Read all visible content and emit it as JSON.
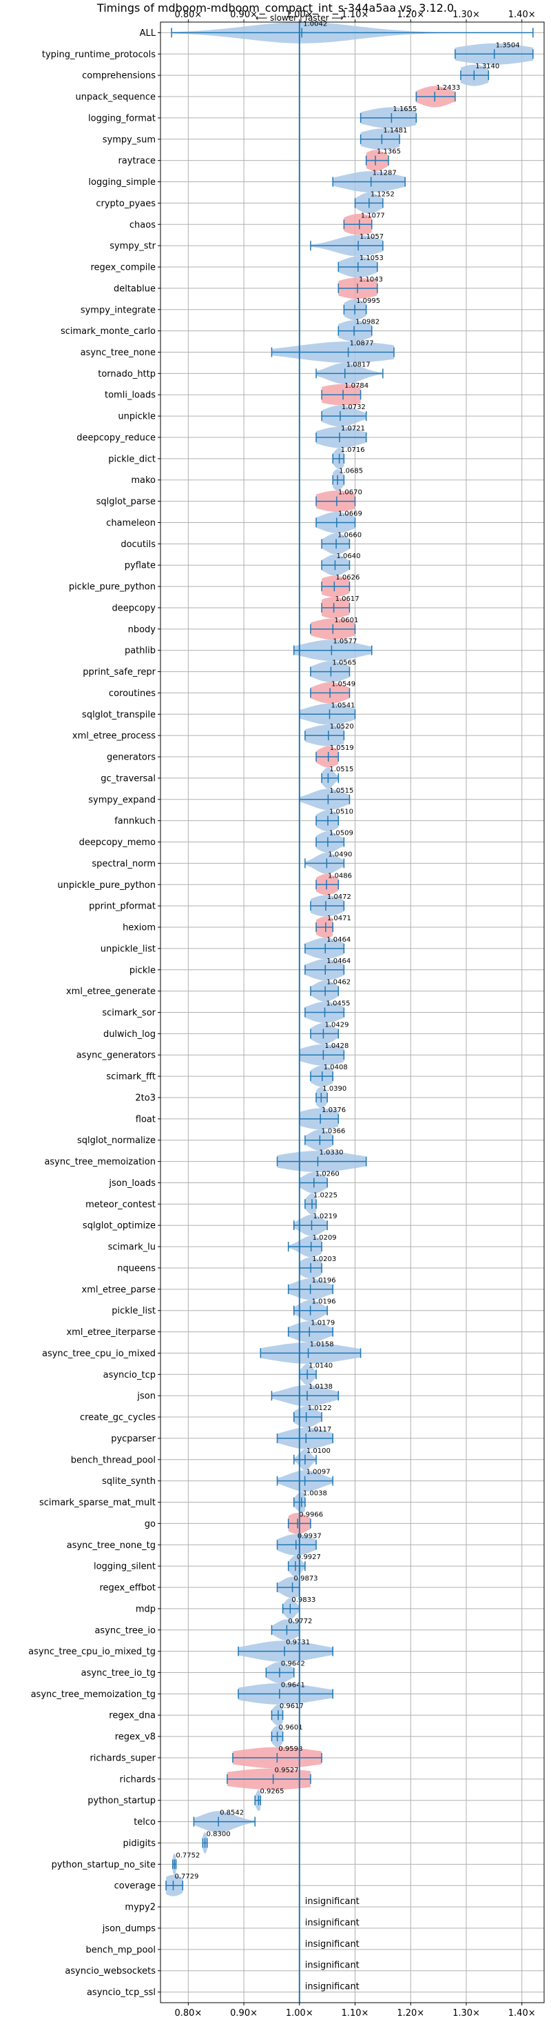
{
  "chart_data": {
    "type": "violin",
    "title": "Timings of mdboom-mdboom_compact_int_s-344a5aa vs. 3.12.0",
    "direction_label": "⟵ slower | faster ⟶",
    "xlim": [
      0.75,
      1.44
    ],
    "xticks": [
      0.8,
      0.9,
      1.0,
      1.1,
      1.2,
      1.3,
      1.4
    ],
    "xtick_labels": [
      "0.80×",
      "0.90×",
      "1.00×",
      "1.10×",
      "1.20×",
      "1.30×",
      "1.40×"
    ],
    "grid": true,
    "reference_line": 1.0,
    "colors": {
      "faster": "#a9c8e8",
      "slower": "#f4a6aa",
      "whisker": "#1f77b4",
      "reference": "#1f77b4",
      "grid": "#b0b0b0"
    },
    "benchmarks": [
      {
        "name": "ALL",
        "value": 1.0042,
        "label": "1.0042",
        "min": 0.77,
        "max": 1.42,
        "spread": 0.1,
        "slower": false
      },
      {
        "name": "typing_runtime_protocols",
        "value": 1.3504,
        "label": "1.3504",
        "min": 1.28,
        "max": 1.42,
        "spread": 0.07,
        "slower": false
      },
      {
        "name": "comprehensions",
        "value": 1.314,
        "label": "1.3140",
        "min": 1.29,
        "max": 1.34,
        "spread": 0.03,
        "slower": false
      },
      {
        "name": "unpack_sequence",
        "value": 1.2433,
        "label": "1.2433",
        "min": 1.21,
        "max": 1.28,
        "spread": 0.03,
        "slower": true
      },
      {
        "name": "logging_format",
        "value": 1.1655,
        "label": "1.1655",
        "min": 1.11,
        "max": 1.21,
        "spread": 0.05,
        "slower": false
      },
      {
        "name": "sympy_sum",
        "value": 1.1481,
        "label": "1.1481",
        "min": 1.11,
        "max": 1.18,
        "spread": 0.04,
        "slower": false
      },
      {
        "name": "raytrace",
        "value": 1.1365,
        "label": "1.1365",
        "min": 1.12,
        "max": 1.16,
        "spread": 0.02,
        "slower": true
      },
      {
        "name": "logging_simple",
        "value": 1.1287,
        "label": "1.1287",
        "min": 1.06,
        "max": 1.19,
        "spread": 0.05,
        "slower": false
      },
      {
        "name": "crypto_pyaes",
        "value": 1.1252,
        "label": "1.1252",
        "min": 1.1,
        "max": 1.15,
        "spread": 0.02,
        "slower": false
      },
      {
        "name": "chaos",
        "value": 1.1077,
        "label": "1.1077",
        "min": 1.08,
        "max": 1.13,
        "spread": 0.03,
        "slower": true
      },
      {
        "name": "sympy_str",
        "value": 1.1057,
        "label": "1.1057",
        "min": 1.02,
        "max": 1.15,
        "spread": 0.04,
        "slower": false
      },
      {
        "name": "regex_compile",
        "value": 1.1053,
        "label": "1.1053",
        "min": 1.07,
        "max": 1.14,
        "spread": 0.03,
        "slower": false
      },
      {
        "name": "deltablue",
        "value": 1.1043,
        "label": "1.1043",
        "min": 1.07,
        "max": 1.14,
        "spread": 0.04,
        "slower": true
      },
      {
        "name": "sympy_integrate",
        "value": 1.0995,
        "label": "1.0995",
        "min": 1.08,
        "max": 1.12,
        "spread": 0.02,
        "slower": false
      },
      {
        "name": "scimark_monte_carlo",
        "value": 1.0982,
        "label": "1.0982",
        "min": 1.07,
        "max": 1.13,
        "spread": 0.03,
        "slower": false
      },
      {
        "name": "async_tree_none",
        "value": 1.0877,
        "label": "1.0877",
        "min": 0.95,
        "max": 1.17,
        "spread": 0.09,
        "slower": false
      },
      {
        "name": "tornado_http",
        "value": 1.0817,
        "label": "1.0817",
        "min": 1.03,
        "max": 1.15,
        "spread": 0.03,
        "slower": false
      },
      {
        "name": "tomli_loads",
        "value": 1.0784,
        "label": "1.0784",
        "min": 1.04,
        "max": 1.11,
        "spread": 0.05,
        "slower": true
      },
      {
        "name": "unpickle",
        "value": 1.0732,
        "label": "1.0732",
        "min": 1.04,
        "max": 1.12,
        "spread": 0.03,
        "slower": false
      },
      {
        "name": "deepcopy_reduce",
        "value": 1.0721,
        "label": "1.0721",
        "min": 1.03,
        "max": 1.12,
        "spread": 0.04,
        "slower": false
      },
      {
        "name": "pickle_dict",
        "value": 1.0716,
        "label": "1.0716",
        "min": 1.06,
        "max": 1.08,
        "spread": 0.01,
        "slower": false
      },
      {
        "name": "mako",
        "value": 1.0685,
        "label": "1.0685",
        "min": 1.06,
        "max": 1.08,
        "spread": 0.01,
        "slower": false
      },
      {
        "name": "sqlglot_parse",
        "value": 1.067,
        "label": "1.0670",
        "min": 1.03,
        "max": 1.1,
        "spread": 0.04,
        "slower": true
      },
      {
        "name": "chameleon",
        "value": 1.0669,
        "label": "1.0669",
        "min": 1.03,
        "max": 1.1,
        "spread": 0.03,
        "slower": false
      },
      {
        "name": "docutils",
        "value": 1.066,
        "label": "1.0660",
        "min": 1.04,
        "max": 1.09,
        "spread": 0.02,
        "slower": false
      },
      {
        "name": "pyflate",
        "value": 1.064,
        "label": "1.0640",
        "min": 1.04,
        "max": 1.09,
        "spread": 0.02,
        "slower": false
      },
      {
        "name": "pickle_pure_python",
        "value": 1.0626,
        "label": "1.0626",
        "min": 1.04,
        "max": 1.09,
        "spread": 0.03,
        "slower": true
      },
      {
        "name": "deepcopy",
        "value": 1.0617,
        "label": "1.0617",
        "min": 1.04,
        "max": 1.09,
        "spread": 0.03,
        "slower": true
      },
      {
        "name": "nbody",
        "value": 1.0601,
        "label": "1.0601",
        "min": 1.02,
        "max": 1.1,
        "spread": 0.04,
        "slower": true
      },
      {
        "name": "pathlib",
        "value": 1.0577,
        "label": "1.0577",
        "min": 0.99,
        "max": 1.13,
        "spread": 0.05,
        "slower": false
      },
      {
        "name": "pprint_safe_repr",
        "value": 1.0565,
        "label": "1.0565",
        "min": 1.02,
        "max": 1.09,
        "spread": 0.03,
        "slower": false
      },
      {
        "name": "coroutines",
        "value": 1.0549,
        "label": "1.0549",
        "min": 1.02,
        "max": 1.09,
        "spread": 0.03,
        "slower": true
      },
      {
        "name": "sqlglot_transpile",
        "value": 1.0541,
        "label": "1.0541",
        "min": 1.0,
        "max": 1.1,
        "spread": 0.04,
        "slower": false
      },
      {
        "name": "xml_etree_process",
        "value": 1.052,
        "label": "1.0520",
        "min": 1.01,
        "max": 1.08,
        "spread": 0.04,
        "slower": false
      },
      {
        "name": "generators",
        "value": 1.0519,
        "label": "1.0519",
        "min": 1.03,
        "max": 1.07,
        "spread": 0.02,
        "slower": true
      },
      {
        "name": "gc_traversal",
        "value": 1.0515,
        "label": "1.0515",
        "min": 1.04,
        "max": 1.07,
        "spread": 0.01,
        "slower": false
      },
      {
        "name": "sympy_expand",
        "value": 1.0515,
        "label": "1.0515",
        "min": 1.0,
        "max": 1.09,
        "spread": 0.03,
        "slower": false
      },
      {
        "name": "fannkuch",
        "value": 1.051,
        "label": "1.0510",
        "min": 1.03,
        "max": 1.07,
        "spread": 0.02,
        "slower": false
      },
      {
        "name": "deepcopy_memo",
        "value": 1.0509,
        "label": "1.0509",
        "min": 1.03,
        "max": 1.08,
        "spread": 0.02,
        "slower": false
      },
      {
        "name": "spectral_norm",
        "value": 1.049,
        "label": "1.0490",
        "min": 1.01,
        "max": 1.08,
        "spread": 0.02,
        "slower": false
      },
      {
        "name": "unpickle_pure_python",
        "value": 1.0486,
        "label": "1.0486",
        "min": 1.03,
        "max": 1.07,
        "spread": 0.02,
        "slower": true
      },
      {
        "name": "pprint_pformat",
        "value": 1.0472,
        "label": "1.0472",
        "min": 1.02,
        "max": 1.08,
        "spread": 0.03,
        "slower": false
      },
      {
        "name": "hexiom",
        "value": 1.0471,
        "label": "1.0471",
        "min": 1.03,
        "max": 1.06,
        "spread": 0.02,
        "slower": true
      },
      {
        "name": "unpickle_list",
        "value": 1.0464,
        "label": "1.0464",
        "min": 1.01,
        "max": 1.08,
        "spread": 0.03,
        "slower": false
      },
      {
        "name": "pickle",
        "value": 1.0464,
        "label": "1.0464",
        "min": 1.01,
        "max": 1.08,
        "spread": 0.03,
        "slower": false
      },
      {
        "name": "xml_etree_generate",
        "value": 1.0462,
        "label": "1.0462",
        "min": 1.02,
        "max": 1.07,
        "spread": 0.02,
        "slower": false
      },
      {
        "name": "scimark_sor",
        "value": 1.0455,
        "label": "1.0455",
        "min": 1.01,
        "max": 1.08,
        "spread": 0.03,
        "slower": false
      },
      {
        "name": "dulwich_log",
        "value": 1.0429,
        "label": "1.0429",
        "min": 1.02,
        "max": 1.07,
        "spread": 0.02,
        "slower": false
      },
      {
        "name": "async_generators",
        "value": 1.0428,
        "label": "1.0428",
        "min": 1.0,
        "max": 1.08,
        "spread": 0.04,
        "slower": false
      },
      {
        "name": "scimark_fft",
        "value": 1.0408,
        "label": "1.0408",
        "min": 1.02,
        "max": 1.06,
        "spread": 0.02,
        "slower": false
      },
      {
        "name": "2to3",
        "value": 1.039,
        "label": "1.0390",
        "min": 1.03,
        "max": 1.05,
        "spread": 0.01,
        "slower": false
      },
      {
        "name": "float",
        "value": 1.0376,
        "label": "1.0376",
        "min": 1.0,
        "max": 1.07,
        "spread": 0.04,
        "slower": false
      },
      {
        "name": "sqlglot_normalize",
        "value": 1.0366,
        "label": "1.0366",
        "min": 1.01,
        "max": 1.06,
        "spread": 0.02,
        "slower": false
      },
      {
        "name": "async_tree_memoization",
        "value": 1.033,
        "label": "1.0330",
        "min": 0.96,
        "max": 1.12,
        "spread": 0.07,
        "slower": false
      },
      {
        "name": "json_loads",
        "value": 1.026,
        "label": "1.0260",
        "min": 1.0,
        "max": 1.05,
        "spread": 0.02,
        "slower": false
      },
      {
        "name": "meteor_contest",
        "value": 1.0225,
        "label": "1.0225",
        "min": 1.01,
        "max": 1.03,
        "spread": 0.01,
        "slower": false
      },
      {
        "name": "sqlglot_optimize",
        "value": 1.0219,
        "label": "1.0219",
        "min": 0.99,
        "max": 1.05,
        "spread": 0.02,
        "slower": false
      },
      {
        "name": "scimark_lu",
        "value": 1.0209,
        "label": "1.0209",
        "min": 0.98,
        "max": 1.04,
        "spread": 0.02,
        "slower": false
      },
      {
        "name": "nqueens",
        "value": 1.0203,
        "label": "1.0203",
        "min": 1.0,
        "max": 1.04,
        "spread": 0.02,
        "slower": false
      },
      {
        "name": "xml_etree_parse",
        "value": 1.0196,
        "label": "1.0196",
        "min": 0.98,
        "max": 1.06,
        "spread": 0.03,
        "slower": false
      },
      {
        "name": "pickle_list",
        "value": 1.0196,
        "label": "1.0196",
        "min": 0.99,
        "max": 1.05,
        "spread": 0.02,
        "slower": false
      },
      {
        "name": "xml_etree_iterparse",
        "value": 1.0179,
        "label": "1.0179",
        "min": 0.98,
        "max": 1.06,
        "spread": 0.03,
        "slower": false
      },
      {
        "name": "async_tree_cpu_io_mixed",
        "value": 1.0158,
        "label": "1.0158",
        "min": 0.93,
        "max": 1.11,
        "spread": 0.07,
        "slower": false
      },
      {
        "name": "asyncio_tcp",
        "value": 1.014,
        "label": "1.0140",
        "min": 1.0,
        "max": 1.03,
        "spread": 0.01,
        "slower": false
      },
      {
        "name": "json",
        "value": 1.0138,
        "label": "1.0138",
        "min": 0.95,
        "max": 1.07,
        "spread": 0.04,
        "slower": false
      },
      {
        "name": "create_gc_cycles",
        "value": 1.0122,
        "label": "1.0122",
        "min": 0.99,
        "max": 1.04,
        "spread": 0.02,
        "slower": false
      },
      {
        "name": "pycparser",
        "value": 1.0117,
        "label": "1.0117",
        "min": 0.96,
        "max": 1.06,
        "spread": 0.04,
        "slower": false
      },
      {
        "name": "bench_thread_pool",
        "value": 1.01,
        "label": "1.0100",
        "min": 0.99,
        "max": 1.03,
        "spread": 0.01,
        "slower": false
      },
      {
        "name": "sqlite_synth",
        "value": 1.0097,
        "label": "1.0097",
        "min": 0.96,
        "max": 1.06,
        "spread": 0.03,
        "slower": false
      },
      {
        "name": "scimark_sparse_mat_mult",
        "value": 1.0038,
        "label": "1.0038",
        "min": 0.99,
        "max": 1.01,
        "spread": 0.01,
        "slower": false
      },
      {
        "name": "go",
        "value": 0.9966,
        "label": "0.9966",
        "min": 0.98,
        "max": 1.02,
        "spread": 0.02,
        "slower": true
      },
      {
        "name": "async_tree_none_tg",
        "value": 0.9937,
        "label": "0.9937",
        "min": 0.96,
        "max": 1.03,
        "spread": 0.03,
        "slower": false
      },
      {
        "name": "logging_silent",
        "value": 0.9927,
        "label": "0.9927",
        "min": 0.98,
        "max": 1.01,
        "spread": 0.01,
        "slower": false
      },
      {
        "name": "regex_effbot",
        "value": 0.9873,
        "label": "0.9873",
        "min": 0.96,
        "max": 1.0,
        "spread": 0.02,
        "slower": false
      },
      {
        "name": "mdp",
        "value": 0.9833,
        "label": "0.9833",
        "min": 0.97,
        "max": 1.0,
        "spread": 0.01,
        "slower": false
      },
      {
        "name": "async_tree_io",
        "value": 0.9772,
        "label": "0.9772",
        "min": 0.95,
        "max": 1.0,
        "spread": 0.02,
        "slower": false
      },
      {
        "name": "async_tree_cpu_io_mixed_tg",
        "value": 0.9731,
        "label": "0.9731",
        "min": 0.89,
        "max": 1.06,
        "spread": 0.06,
        "slower": false
      },
      {
        "name": "async_tree_io_tg",
        "value": 0.9642,
        "label": "0.9642",
        "min": 0.94,
        "max": 0.99,
        "spread": 0.02,
        "slower": false
      },
      {
        "name": "async_tree_memoization_tg",
        "value": 0.9641,
        "label": "0.9641",
        "min": 0.89,
        "max": 1.06,
        "spread": 0.07,
        "slower": false
      },
      {
        "name": "regex_dna",
        "value": 0.9617,
        "label": "0.9617",
        "min": 0.95,
        "max": 0.97,
        "spread": 0.01,
        "slower": false
      },
      {
        "name": "regex_v8",
        "value": 0.9601,
        "label": "0.9601",
        "min": 0.95,
        "max": 0.97,
        "spread": 0.01,
        "slower": false
      },
      {
        "name": "richards_super",
        "value": 0.9598,
        "label": "0.9598",
        "min": 0.88,
        "max": 1.04,
        "spread": 0.08,
        "slower": true
      },
      {
        "name": "richards",
        "value": 0.9527,
        "label": "0.9527",
        "min": 0.87,
        "max": 1.02,
        "spread": 0.09,
        "slower": true
      },
      {
        "name": "python_startup",
        "value": 0.9265,
        "label": "0.9265",
        "min": 0.92,
        "max": 0.93,
        "spread": 0.005,
        "slower": false
      },
      {
        "name": "telco",
        "value": 0.8542,
        "label": "0.8542",
        "min": 0.81,
        "max": 0.92,
        "spread": 0.03,
        "slower": false
      },
      {
        "name": "pidigits",
        "value": 0.83,
        "label": "0.8300",
        "min": 0.826,
        "max": 0.834,
        "spread": 0.004,
        "slower": false
      },
      {
        "name": "python_startup_no_site",
        "value": 0.7752,
        "label": "0.7752",
        "min": 0.772,
        "max": 0.778,
        "spread": 0.004,
        "slower": false
      },
      {
        "name": "coverage",
        "value": 0.7729,
        "label": "0.7729",
        "min": 0.76,
        "max": 0.79,
        "spread": 0.02,
        "slower": false
      },
      {
        "name": "mypy2",
        "value": null,
        "label": "insignificant"
      },
      {
        "name": "json_dumps",
        "value": null,
        "label": "insignificant"
      },
      {
        "name": "bench_mp_pool",
        "value": null,
        "label": "insignificant"
      },
      {
        "name": "asyncio_websockets",
        "value": null,
        "label": "insignificant"
      },
      {
        "name": "asyncio_tcp_ssl",
        "value": null,
        "label": "insignificant"
      }
    ]
  }
}
